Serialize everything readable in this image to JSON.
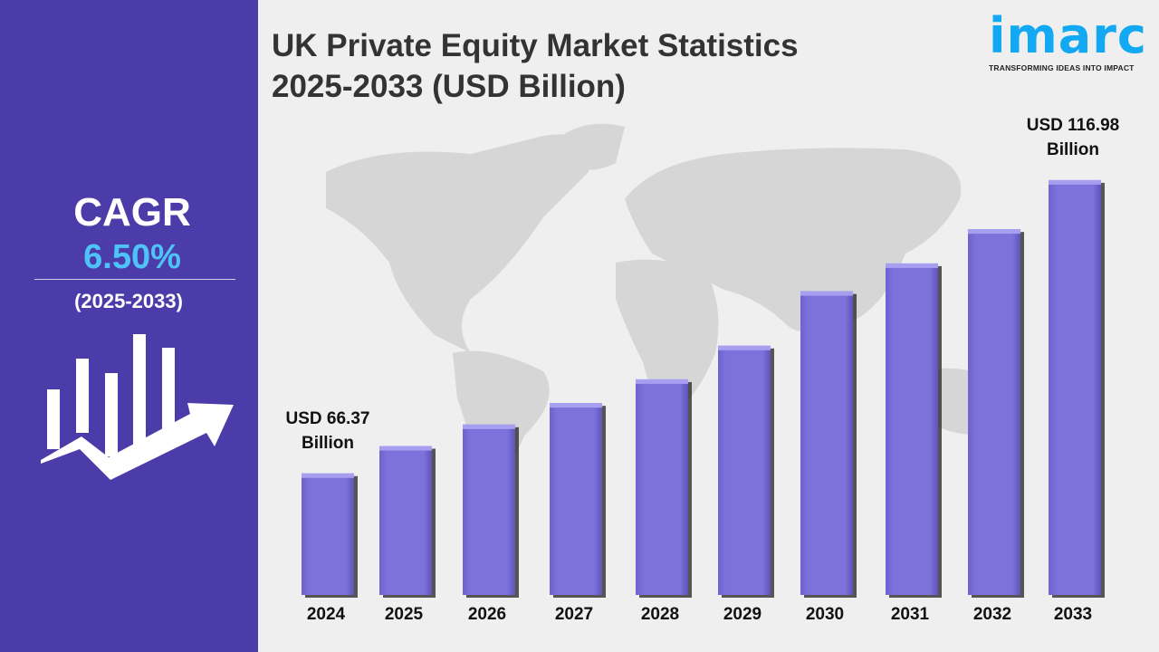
{
  "header": {
    "title_line1": "UK Private Equity Market Statistics",
    "title_line2": "2025-2033 (USD Billion)"
  },
  "logo": {
    "word": "imarc",
    "tagline": "TRANSFORMING IDEAS INTO IMPACT",
    "color": "#12a8f2"
  },
  "sidebar": {
    "cagr_label": "CAGR",
    "cagr_value": "6.50%",
    "cagr_period": "(2025-2033)",
    "background": "#4b3ca9",
    "value_color": "#4fc3f7",
    "icon": "bar-chart-growth-arrow-icon"
  },
  "chart_data": {
    "type": "bar",
    "categories": [
      "2024",
      "2025",
      "2026",
      "2027",
      "2028",
      "2029",
      "2030",
      "2031",
      "2032",
      "2033"
    ],
    "values": [
      66.37,
      71.1,
      74.8,
      78.5,
      82.6,
      88.4,
      97.8,
      102.6,
      108.5,
      116.98
    ],
    "annotations": [
      {
        "category": "2024",
        "line1": "USD 66.37",
        "line2": "Billion"
      },
      {
        "category": "2033",
        "line1": "USD 116.98",
        "line2": "Billion"
      }
    ],
    "bar_color": "#7b6fd8",
    "grid": false,
    "background": "world-map"
  }
}
